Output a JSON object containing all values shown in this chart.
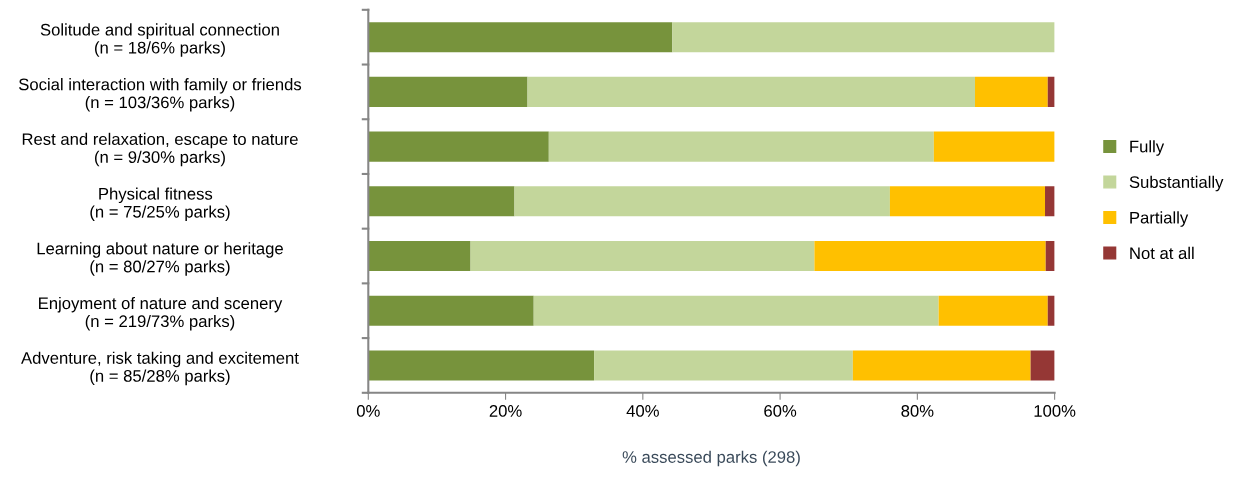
{
  "chart_data": {
    "type": "bar",
    "orientation": "horizontal",
    "stacked": true,
    "xlabel": "% assessed parks (298)",
    "categories": [
      "Solitude and spiritual connection\n(n = 18/6% parks)",
      "Social interaction with family or friends\n(n = 103/36% parks)",
      "Rest and relaxation, escape to nature\n(n = 9/30% parks)",
      "Physical fitness  \n(n = 75/25% parks)",
      "Learning about nature or heritage\n(n = 80/27% parks)",
      "Enjoyment of nature and scenery\n(n = 219/73% parks)",
      "Adventure, risk taking and excitement\n(n = 85/28% parks)"
    ],
    "series": [
      {
        "name": "Fully",
        "color": "#77933c",
        "values": [
          44.3,
          23.2,
          26.3,
          21.3,
          14.9,
          24.1,
          32.9
        ]
      },
      {
        "name": "Substantially",
        "color": "#c3d69b",
        "values": [
          55.7,
          65.2,
          56.1,
          54.7,
          50.1,
          59.0,
          37.7
        ]
      },
      {
        "name": "Partially",
        "color": "#ffc000",
        "values": [
          0,
          10.6,
          17.6,
          22.6,
          33.7,
          15.9,
          25.9
        ]
      },
      {
        "name": "Not at all",
        "color": "#953735",
        "values": [
          0,
          1.0,
          0,
          1.4,
          1.3,
          1.0,
          3.5
        ]
      }
    ],
    "xlim": [
      0,
      100
    ],
    "xticks": [
      {
        "value": 0,
        "label": "0%"
      },
      {
        "value": 20,
        "label": "20%"
      },
      {
        "value": 40,
        "label": "40%"
      },
      {
        "value": 60,
        "label": "60%"
      },
      {
        "value": 80,
        "label": "80%"
      },
      {
        "value": 100,
        "label": "100%"
      }
    ],
    "grid": false,
    "legend": "right"
  }
}
